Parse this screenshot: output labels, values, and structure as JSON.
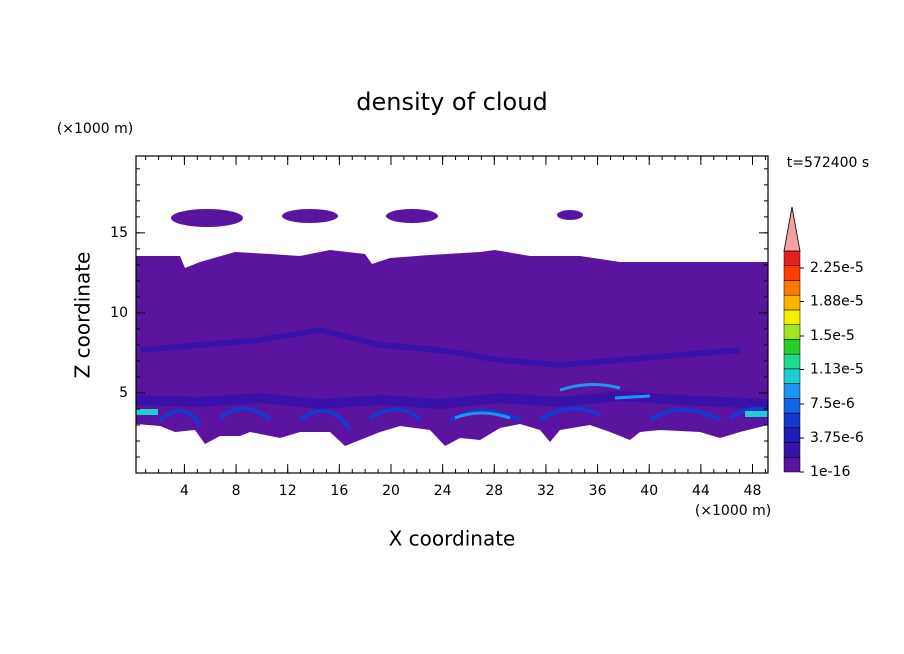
{
  "chart_data": {
    "type": "contour",
    "title": "density of cloud",
    "x_label": "X coordinate",
    "y_label": "Z coordinate",
    "x_unit": "(×1000 m)",
    "y_unit": "(×1000 m)",
    "time_label": "t=572400 s",
    "xlim": [
      0.25,
      49.2
    ],
    "xticks": [
      4,
      8,
      12,
      16,
      20,
      24,
      28,
      32,
      36,
      40,
      44,
      48
    ],
    "ylim": [
      0,
      19.8
    ],
    "yticks": [
      5,
      10,
      15
    ],
    "colorbar": {
      "clim": [
        1e-16,
        2.4375e-05
      ],
      "ticks": [
        {
          "value": 1e-16,
          "label": "1e-16"
        },
        {
          "value": 3.75e-06,
          "label": "3.75e-6"
        },
        {
          "value": 7.5e-06,
          "label": "7.5e-6"
        },
        {
          "value": 1.13e-05,
          "label": "1.13e-5"
        },
        {
          "value": 1.5e-05,
          "label": "1.5e-5"
        },
        {
          "value": 1.88e-05,
          "label": "1.88e-5"
        },
        {
          "value": 2.25e-05,
          "label": "2.25e-5"
        }
      ],
      "colors": [
        "#5a14a0",
        "#3a12aa",
        "#1e1eb4",
        "#1438d0",
        "#1464e6",
        "#1e96f0",
        "#1ecdd2",
        "#1edc8c",
        "#28cd28",
        "#a0e61e",
        "#f0f000",
        "#ffb400",
        "#ff7800",
        "#ff3c00",
        "#e61e1e"
      ],
      "over_color": "#f4a0a0"
    }
  }
}
